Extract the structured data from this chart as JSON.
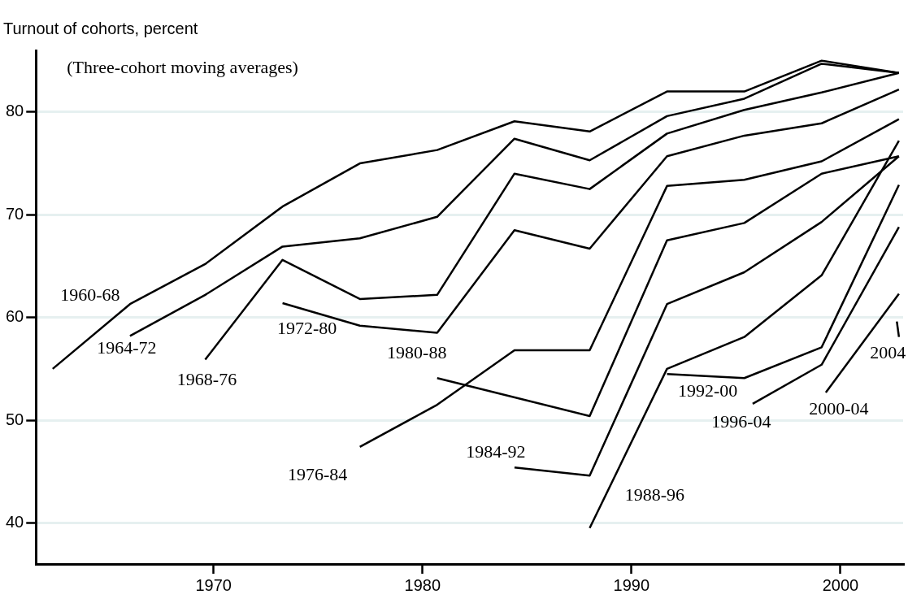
{
  "chart_data": {
    "type": "line",
    "ylabel": "Turnout of cohorts, percent",
    "annotations": [
      "(Three-cohort moving averages)"
    ],
    "xlim": [
      1961.5,
      2003
    ],
    "ylim": [
      36,
      86
    ],
    "xticks": [
      1970,
      1980,
      1990,
      2000
    ],
    "yticks": [
      40,
      50,
      60,
      70,
      80
    ],
    "grid": "y",
    "marker": "none",
    "series": [
      {
        "name": "1960-68",
        "color": "#000000",
        "x": [
          1962.3,
          1966,
          1969.6,
          1973.3,
          1977,
          1980.7,
          1984.4,
          1988,
          1991.7,
          1995.4,
          1999.1,
          2002.8
        ],
        "values": [
          55.0,
          61.3,
          65.2,
          70.8,
          75.0,
          76.3,
          79.1,
          78.1,
          82.0,
          82.0,
          85.0,
          83.8
        ]
      },
      {
        "name": "1964-72",
        "color": "#000000",
        "x": [
          1966,
          1969.6,
          1973.3,
          1977,
          1980.7,
          1984.4,
          1988,
          1991.7,
          1995.4,
          1999.1,
          2002.8
        ],
        "values": [
          58.2,
          62.2,
          66.9,
          67.7,
          69.8,
          77.4,
          75.3,
          79.6,
          81.3,
          84.7,
          83.8
        ]
      },
      {
        "name": "1968-76",
        "color": "#000000",
        "x": [
          1969.6,
          1973.3,
          1977,
          1980.7,
          1984.4,
          1988,
          1991.7,
          1995.4,
          1999.1,
          2002.8
        ],
        "values": [
          55.9,
          65.6,
          61.8,
          62.2,
          74.0,
          72.5,
          77.9,
          80.2,
          81.9,
          83.8
        ]
      },
      {
        "name": "1972-80",
        "color": "#000000",
        "x": [
          1973.3,
          1977,
          1980.7,
          1984.4,
          1988,
          1991.7,
          1995.4,
          1999.1,
          2002.8
        ],
        "values": [
          61.4,
          59.2,
          58.5,
          68.5,
          66.7,
          75.7,
          77.7,
          78.9,
          82.2
        ]
      },
      {
        "name": "1976-84",
        "color": "#000000",
        "x": [
          1977,
          1980.7,
          1984.4,
          1988,
          1991.7,
          1995.4,
          1999.1,
          2002.8
        ],
        "values": [
          47.4,
          51.5,
          56.8,
          56.8,
          72.8,
          73.4,
          75.2,
          79.3
        ]
      },
      {
        "name": "1980-88",
        "color": "#000000",
        "x": [
          1980.7,
          1988,
          1991.7,
          1995.4,
          1999.1,
          2002.8
        ],
        "values": [
          54.1,
          50.4,
          67.5,
          69.2,
          74.0,
          75.7
        ]
      },
      {
        "name": "1984-92",
        "color": "#000000",
        "x": [
          1984.4,
          1988,
          1991.7,
          1995.4,
          1999.1,
          2002.8
        ],
        "values": [
          45.4,
          44.6,
          61.3,
          64.4,
          69.3,
          75.7
        ]
      },
      {
        "name": "1988-96",
        "color": "#000000",
        "x": [
          1988,
          1991.7,
          1995.4,
          1999.1,
          2002.8
        ],
        "values": [
          39.5,
          55.0,
          58.1,
          64.1,
          77.2
        ]
      },
      {
        "name": "1992-00",
        "color": "#000000",
        "x": [
          1991.7,
          1995.4,
          1999.1,
          2002.8
        ],
        "values": [
          54.5,
          54.1,
          57.1,
          72.9
        ]
      },
      {
        "name": "1996-04",
        "color": "#000000",
        "x": [
          1995.8,
          1999.1,
          2002.8
        ],
        "values": [
          51.6,
          55.4,
          68.8
        ]
      },
      {
        "name": "2000-04",
        "color": "#000000",
        "x": [
          1999.3,
          2002.8
        ],
        "values": [
          52.7,
          62.3
        ]
      },
      {
        "name": "2004",
        "color": "#000000",
        "x": [
          2002.7,
          2002.8
        ],
        "values": [
          59.6,
          58.1
        ]
      }
    ]
  }
}
